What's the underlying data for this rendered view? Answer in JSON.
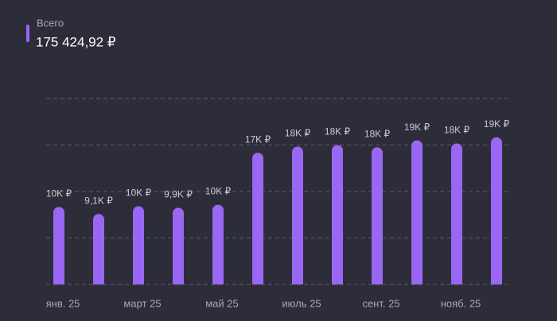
{
  "chart_data": {
    "type": "bar",
    "legend_title": "Всего",
    "total": "175 424,92 ₽",
    "categories": [
      "янв. 25",
      null,
      "март 25",
      null,
      "май 25",
      null,
      "июль 25",
      null,
      "сент. 25",
      null,
      "нояб. 25",
      null
    ],
    "series": [
      {
        "name": "Всего",
        "color": "#9a66f4",
        "values": [
          10000,
          9100,
          10100,
          9900,
          10300,
          17000,
          17800,
          18000,
          17700,
          18600,
          18200,
          19000
        ],
        "value_labels": [
          "10K ₽",
          "9,1K ₽",
          "10K ₽",
          "9,9K ₽",
          "10K ₽",
          "17K ₽",
          "18K ₽",
          "18K ₽",
          "18K ₽",
          "19K ₽",
          "18K ₽",
          "19K ₽"
        ]
      }
    ],
    "ylim": [
      0,
      24000
    ],
    "yticks": [
      0,
      6000,
      12000,
      18000,
      24000
    ],
    "grid": true
  }
}
